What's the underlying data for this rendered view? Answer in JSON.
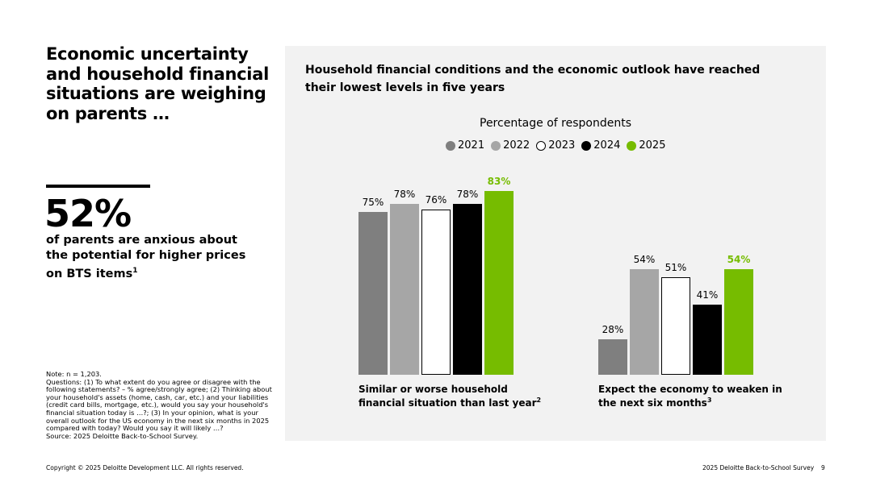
{
  "left": {
    "title": "Economic uncertainty and household financial situations are weighing on parents …",
    "stat": "52%",
    "stat_desc": "of parents are anxious about the potential for higher prices on BTS items",
    "stat_sup": "1",
    "note": "Note: n = 1,203.",
    "questions": "Questions: (1) To what extent do you agree or disagree with the following statements? – % agree/strongly agree; (2) Thinking about your household's assets (home, cash, car, etc.) and your liabilities (credit card bills, mortgage, etc.), would you say your household's financial situation today is …?; (3) In your opinion, what is your overall outlook for the US economy in the next six months in 2025 compared with today? Would you say it will likely …?",
    "source": "Source: 2025 Deloitte Back-to-School Survey."
  },
  "footer": {
    "copyright": "Copyright © 2025 Deloitte Development LLC. All rights reserved.",
    "report": "2025 Deloitte Back-to-School Survey",
    "page": "9"
  },
  "chart_data": {
    "type": "bar",
    "title": "Household financial conditions and the economic outlook have reached their lowest levels in five years",
    "subtitle": "Percentage of respondents",
    "categories": [
      "Similar or worse household financial situation than last year",
      "Expect the economy to weaken in the next six months"
    ],
    "category_sups": [
      "2",
      "3"
    ],
    "series": [
      {
        "name": "2021",
        "color": "#7f7f7f",
        "values": [
          75,
          28
        ]
      },
      {
        "name": "2022",
        "color": "#a6a6a6",
        "values": [
          78,
          54
        ]
      },
      {
        "name": "2023",
        "color": "#ffffff",
        "values": [
          76,
          51
        ]
      },
      {
        "name": "2024",
        "color": "#000000",
        "values": [
          78,
          41
        ]
      },
      {
        "name": "2025",
        "color": "#76bc00",
        "values": [
          83,
          54
        ]
      }
    ],
    "value_suffix": "%",
    "legend_position": "top",
    "grid": false
  }
}
